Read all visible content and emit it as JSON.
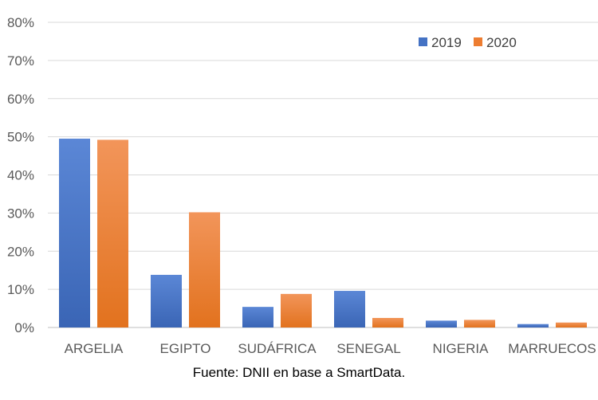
{
  "chart_data": {
    "type": "bar",
    "title": "",
    "xlabel": "",
    "ylabel": "",
    "categories": [
      "ARGELIA",
      "EGIPTO",
      "SUDÁFRICA",
      "SENEGAL",
      "NIGERIA",
      "MARRUECOS"
    ],
    "series": [
      {
        "name": "2019",
        "values": [
          49.5,
          13.8,
          5.4,
          9.6,
          1.8,
          0.9
        ],
        "color": "#4472C4"
      },
      {
        "name": "2020",
        "values": [
          49.2,
          30.2,
          8.8,
          2.5,
          2.0,
          1.3
        ],
        "color": "#ED7D31"
      }
    ],
    "ylim": [
      0,
      80
    ],
    "yticks": [
      0,
      10,
      20,
      30,
      40,
      50,
      60,
      70,
      80
    ],
    "ytick_labels": [
      "0%",
      "10%",
      "20%",
      "30%",
      "40%",
      "50%",
      "60%",
      "70%",
      "80%"
    ],
    "grid": true,
    "legend_position": "top-right"
  },
  "source_note": "Fuente: DNII en base a SmartData."
}
